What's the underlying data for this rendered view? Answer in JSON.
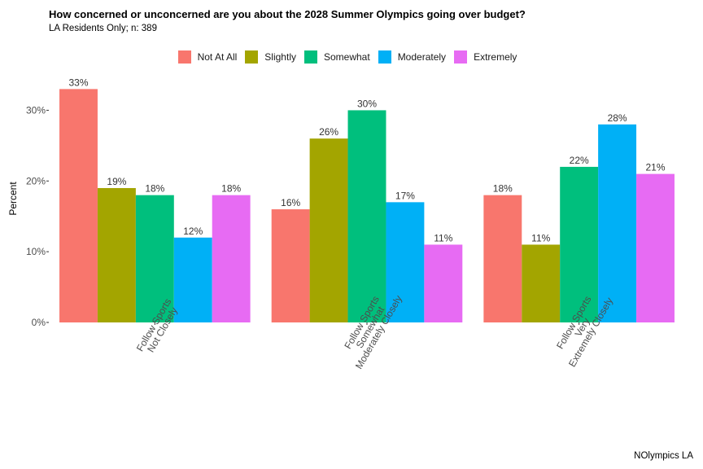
{
  "chart_data": {
    "type": "bar",
    "title": "How concerned or unconcerned are you about the 2028 Summer Olympics going over budget?",
    "subtitle": "LA Residents Only; n:  389",
    "caption": "NOlympics LA",
    "ylabel": "Percent",
    "xlabel": "",
    "ylim": [
      0,
      35
    ],
    "yticks": [
      0,
      10,
      20,
      30
    ],
    "ytick_labels": [
      "0%",
      "10%",
      "20%",
      "30%"
    ],
    "grid": false,
    "legend_position": "top",
    "categories": [
      [
        "Follow Sports",
        "Not Closely"
      ],
      [
        "Follow Sports",
        "Somewhat",
        "Moderately Closely"
      ],
      [
        "Follow Sports",
        "Very",
        "Extremely Closely"
      ]
    ],
    "series": [
      {
        "name": "Not At All",
        "color": "#F8766D",
        "values": [
          33,
          16,
          18
        ],
        "labels": [
          "33%",
          "16%",
          "18%"
        ]
      },
      {
        "name": "Slightly",
        "color": "#A3A500",
        "values": [
          19,
          26,
          11
        ],
        "labels": [
          "19%",
          "26%",
          "11%"
        ]
      },
      {
        "name": "Somewhat",
        "color": "#00BF7D",
        "values": [
          18,
          30,
          22
        ],
        "labels": [
          "18%",
          "30%",
          "22%"
        ]
      },
      {
        "name": "Moderately",
        "color": "#00B0F6",
        "values": [
          12,
          17,
          28
        ],
        "labels": [
          "12%",
          "17%",
          "28%"
        ]
      },
      {
        "name": "Extremely",
        "color": "#E76BF3",
        "values": [
          18,
          11,
          21
        ],
        "labels": [
          "18%",
          "11%",
          "21%"
        ]
      }
    ]
  }
}
